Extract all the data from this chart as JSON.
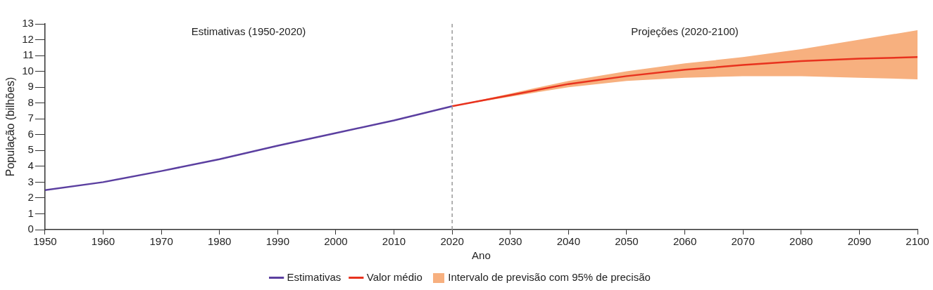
{
  "chart_data": {
    "type": "line",
    "xlabel": "Ano",
    "ylabel": "População (bilhões)",
    "xlim": [
      1950,
      2100
    ],
    "xticks": [
      1950,
      1960,
      1970,
      1980,
      1990,
      2000,
      2010,
      2020,
      2030,
      2040,
      2050,
      2060,
      2070,
      2080,
      2090,
      2100
    ],
    "ylim": [
      0,
      13
    ],
    "yticks": [
      0,
      1,
      2,
      3,
      4,
      5,
      6,
      7,
      8,
      9,
      10,
      11,
      12,
      13
    ],
    "grid": false,
    "legend": "bottom",
    "marker": "none",
    "line_style": "solid",
    "annotations": [
      "Estimativas (1950-2020)",
      "Projeções (2020-2100)",
      "Intervalo de previsão com 95% de precisão"
    ],
    "ref_lines": [
      {
        "axis": "x",
        "value": 2020,
        "color": "#999999",
        "line_style": "dashed"
      }
    ],
    "series": [
      {
        "name": "Estimativas",
        "color": "#5b3fa0",
        "x": [
          1950,
          1960,
          1970,
          1980,
          1990,
          2000,
          2010,
          2020
        ],
        "values": [
          2.5,
          3.0,
          3.7,
          4.45,
          5.3,
          6.1,
          6.9,
          7.8
        ]
      },
      {
        "name": "Valor médio",
        "color": "#e8321e",
        "x": [
          2020,
          2030,
          2040,
          2050,
          2060,
          2070,
          2080,
          2090,
          2100
        ],
        "values": [
          7.8,
          8.5,
          9.2,
          9.7,
          10.1,
          10.4,
          10.65,
          10.8,
          10.9
        ],
        "lower": [
          7.8,
          8.4,
          9.0,
          9.4,
          9.6,
          9.7,
          9.7,
          9.6,
          9.5
        ],
        "upper": [
          7.8,
          8.6,
          9.4,
          10.0,
          10.5,
          10.9,
          11.4,
          12.0,
          12.6
        ]
      }
    ]
  }
}
